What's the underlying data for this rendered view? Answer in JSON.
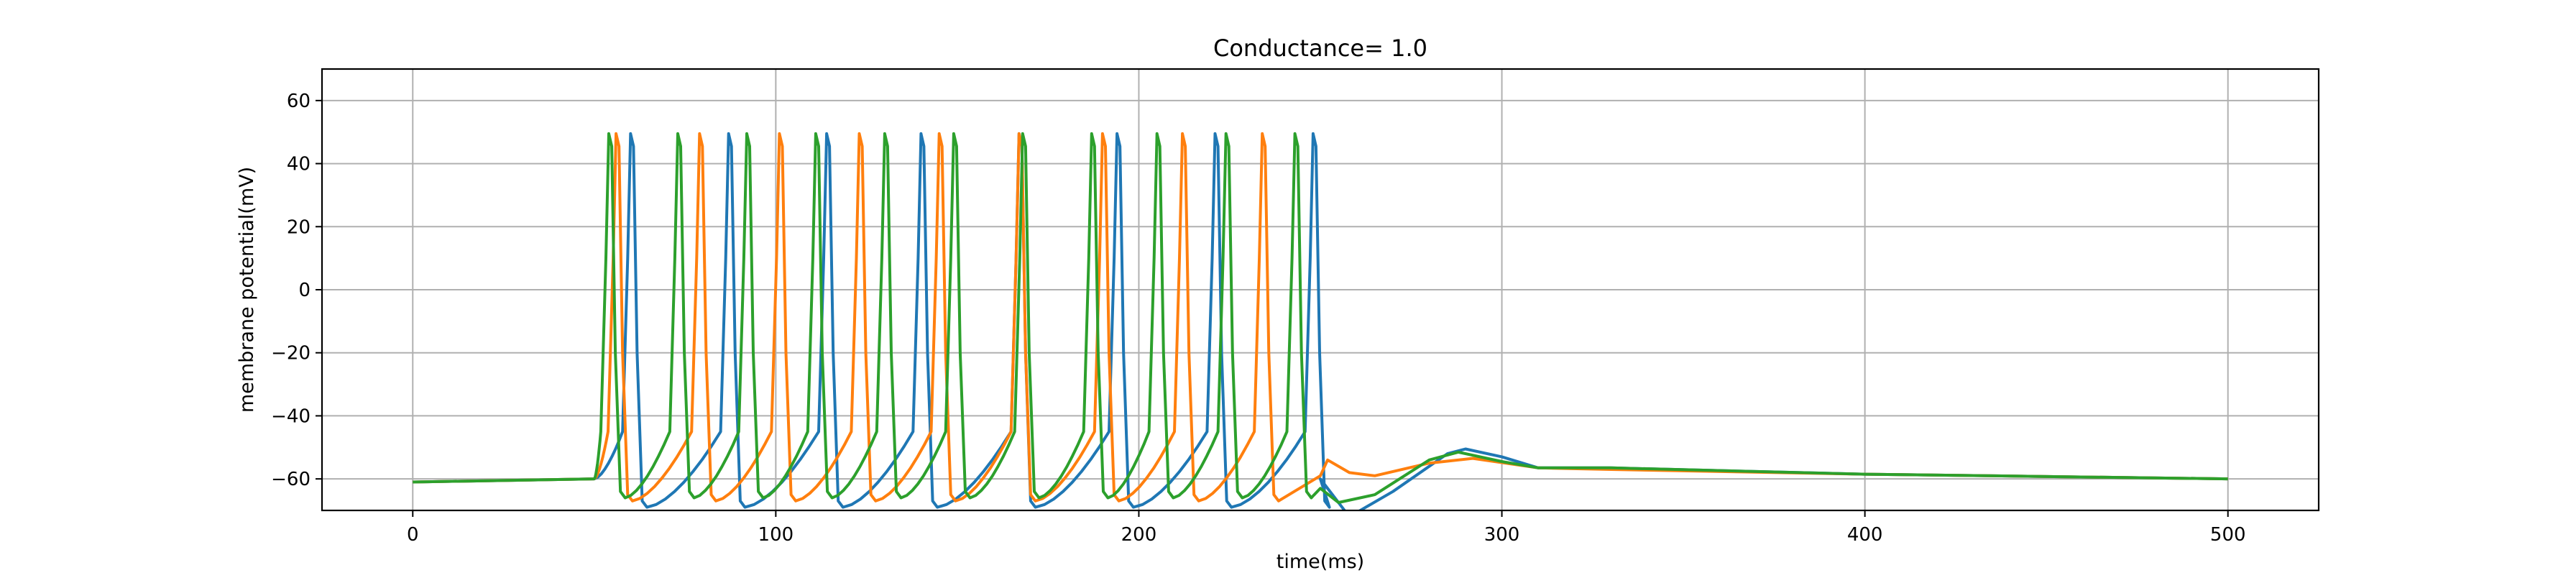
{
  "chart_data": {
    "type": "line",
    "title": "Conductance= 1.0",
    "xlabel": "time(ms)",
    "ylabel": "membrane potential(mV)",
    "xlim": [
      -25,
      525
    ],
    "ylim": [
      -70,
      70
    ],
    "x_ticks": [
      0,
      100,
      200,
      300,
      400,
      500
    ],
    "y_ticks": [
      -60,
      -40,
      -20,
      0,
      20,
      40,
      60
    ],
    "x_tick_labels": [
      "0",
      "100",
      "200",
      "300",
      "400",
      "500"
    ],
    "y_tick_labels": [
      "−60",
      "−40",
      "−20",
      "0",
      "20",
      "40",
      "60"
    ],
    "grid": true,
    "stimulus": {
      "start_ms": 50,
      "end_ms": 250,
      "rest_mV": -61,
      "plateau_mV": -60,
      "peak_mV": 49.5
    },
    "series": [
      {
        "color": "#1f77b4",
        "spike_times_ms": [
          60,
          87,
          114,
          140,
          167,
          194,
          221,
          248
        ],
        "trough_mV": -69,
        "post": [
          [
            250,
            -60
          ],
          [
            258,
            -72
          ],
          [
            270,
            -64
          ],
          [
            285,
            -52
          ],
          [
            290,
            -50.5
          ],
          [
            300,
            -53
          ],
          [
            310,
            -56.5
          ],
          [
            330,
            -56.5
          ],
          [
            400,
            -58.5
          ],
          [
            500,
            -60
          ]
        ]
      },
      {
        "color": "#ff7f0e",
        "spike_times_ms": [
          56,
          79,
          101,
          123,
          145,
          167,
          190,
          212,
          234
        ],
        "trough_mV": -67,
        "post": [
          [
            250,
            -59
          ],
          [
            252,
            -54
          ],
          [
            258,
            -58
          ],
          [
            265,
            -59
          ],
          [
            280,
            -55
          ],
          [
            292,
            -53.5
          ],
          [
            310,
            -56.5
          ],
          [
            330,
            -57
          ],
          [
            400,
            -58.5
          ],
          [
            500,
            -60
          ]
        ]
      },
      {
        "color": "#2ca02c",
        "spike_times_ms": [
          54,
          73,
          92,
          111,
          130,
          149,
          168,
          187,
          205,
          224,
          243
        ],
        "trough_mV": -66,
        "post": [
          [
            250,
            -63
          ],
          [
            255,
            -67.5
          ],
          [
            265,
            -65
          ],
          [
            280,
            -54
          ],
          [
            288,
            -51.5
          ],
          [
            300,
            -54.5
          ],
          [
            310,
            -56.5
          ],
          [
            330,
            -56.5
          ],
          [
            400,
            -58.5
          ],
          [
            500,
            -60
          ]
        ]
      }
    ]
  }
}
